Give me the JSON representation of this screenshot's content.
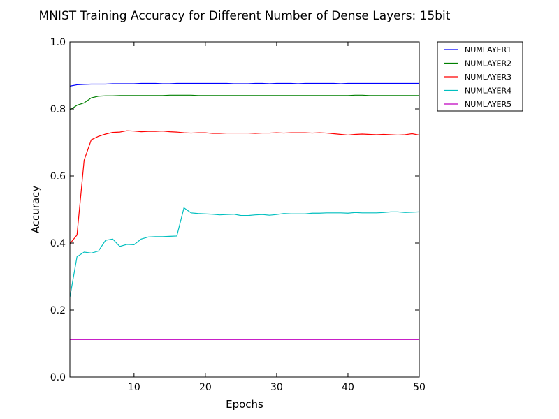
{
  "chart_data": {
    "type": "line",
    "title": "MNIST Training Accuracy for Different Number of Dense Layers: 15bit",
    "xlabel": "Epochs",
    "ylabel": "Accuracy",
    "xlim": [
      1,
      50
    ],
    "ylim": [
      0.0,
      1.0
    ],
    "x_ticks": [
      10,
      20,
      30,
      40,
      50
    ],
    "x_tick_labels": [
      "10",
      "20",
      "30",
      "40",
      "50"
    ],
    "y_ticks": [
      0.0,
      0.2,
      0.4,
      0.6,
      0.8,
      1.0
    ],
    "y_tick_labels": [
      "0.0",
      "0.2",
      "0.4",
      "0.6",
      "0.8",
      "1.0"
    ],
    "grid": false,
    "legend_position": "outside-top-right",
    "x": [
      1,
      2,
      3,
      4,
      5,
      6,
      7,
      8,
      9,
      10,
      11,
      12,
      13,
      14,
      15,
      16,
      17,
      18,
      19,
      20,
      21,
      22,
      23,
      24,
      25,
      26,
      27,
      28,
      29,
      30,
      31,
      32,
      33,
      34,
      35,
      36,
      37,
      38,
      39,
      40,
      41,
      42,
      43,
      44,
      45,
      46,
      47,
      48,
      49,
      50
    ],
    "series": [
      {
        "name": "NUMLAYER1",
        "color": "#0000ff",
        "values": [
          0.868,
          0.872,
          0.873,
          0.874,
          0.874,
          0.874,
          0.875,
          0.875,
          0.875,
          0.875,
          0.876,
          0.876,
          0.876,
          0.875,
          0.875,
          0.876,
          0.876,
          0.876,
          0.876,
          0.876,
          0.876,
          0.876,
          0.876,
          0.875,
          0.875,
          0.875,
          0.876,
          0.876,
          0.875,
          0.876,
          0.876,
          0.876,
          0.875,
          0.876,
          0.876,
          0.876,
          0.876,
          0.876,
          0.875,
          0.876,
          0.876,
          0.876,
          0.876,
          0.876,
          0.876,
          0.876,
          0.876,
          0.876,
          0.876,
          0.876
        ]
      },
      {
        "name": "NUMLAYER2",
        "color": "#008000",
        "values": [
          0.797,
          0.811,
          0.818,
          0.833,
          0.838,
          0.839,
          0.839,
          0.84,
          0.84,
          0.84,
          0.84,
          0.84,
          0.84,
          0.84,
          0.841,
          0.841,
          0.841,
          0.841,
          0.84,
          0.84,
          0.84,
          0.84,
          0.84,
          0.84,
          0.84,
          0.84,
          0.84,
          0.84,
          0.84,
          0.84,
          0.84,
          0.84,
          0.84,
          0.84,
          0.84,
          0.84,
          0.84,
          0.84,
          0.84,
          0.84,
          0.841,
          0.841,
          0.84,
          0.84,
          0.84,
          0.84,
          0.84,
          0.84,
          0.84,
          0.84
        ]
      },
      {
        "name": "NUMLAYER3",
        "color": "#ff0000",
        "values": [
          0.398,
          0.424,
          0.647,
          0.708,
          0.718,
          0.725,
          0.73,
          0.731,
          0.735,
          0.734,
          0.732,
          0.733,
          0.733,
          0.734,
          0.732,
          0.731,
          0.729,
          0.728,
          0.729,
          0.729,
          0.727,
          0.727,
          0.728,
          0.728,
          0.728,
          0.728,
          0.727,
          0.728,
          0.728,
          0.729,
          0.728,
          0.729,
          0.729,
          0.729,
          0.728,
          0.729,
          0.728,
          0.726,
          0.724,
          0.722,
          0.724,
          0.725,
          0.724,
          0.723,
          0.724,
          0.723,
          0.722,
          0.723,
          0.726,
          0.722
        ]
      },
      {
        "name": "NUMLAYER4",
        "color": "#00bfbf",
        "values": [
          0.238,
          0.359,
          0.373,
          0.37,
          0.376,
          0.408,
          0.412,
          0.39,
          0.396,
          0.395,
          0.412,
          0.418,
          0.419,
          0.419,
          0.42,
          0.421,
          0.505,
          0.49,
          0.488,
          0.487,
          0.486,
          0.484,
          0.485,
          0.486,
          0.482,
          0.482,
          0.484,
          0.485,
          0.483,
          0.485,
          0.488,
          0.487,
          0.487,
          0.487,
          0.489,
          0.489,
          0.49,
          0.49,
          0.49,
          0.489,
          0.491,
          0.49,
          0.49,
          0.49,
          0.491,
          0.493,
          0.493,
          0.491,
          0.492,
          0.493
        ]
      },
      {
        "name": "NUMLAYER5",
        "color": "#bf00bf",
        "values": [
          0.112,
          0.112,
          0.112,
          0.112,
          0.112,
          0.112,
          0.112,
          0.112,
          0.112,
          0.112,
          0.112,
          0.112,
          0.112,
          0.112,
          0.112,
          0.112,
          0.112,
          0.112,
          0.112,
          0.112,
          0.112,
          0.112,
          0.112,
          0.112,
          0.112,
          0.112,
          0.112,
          0.112,
          0.112,
          0.112,
          0.112,
          0.112,
          0.112,
          0.112,
          0.112,
          0.112,
          0.112,
          0.112,
          0.112,
          0.112,
          0.112,
          0.112,
          0.112,
          0.112,
          0.112,
          0.112,
          0.112,
          0.112,
          0.112,
          0.112
        ]
      }
    ]
  }
}
